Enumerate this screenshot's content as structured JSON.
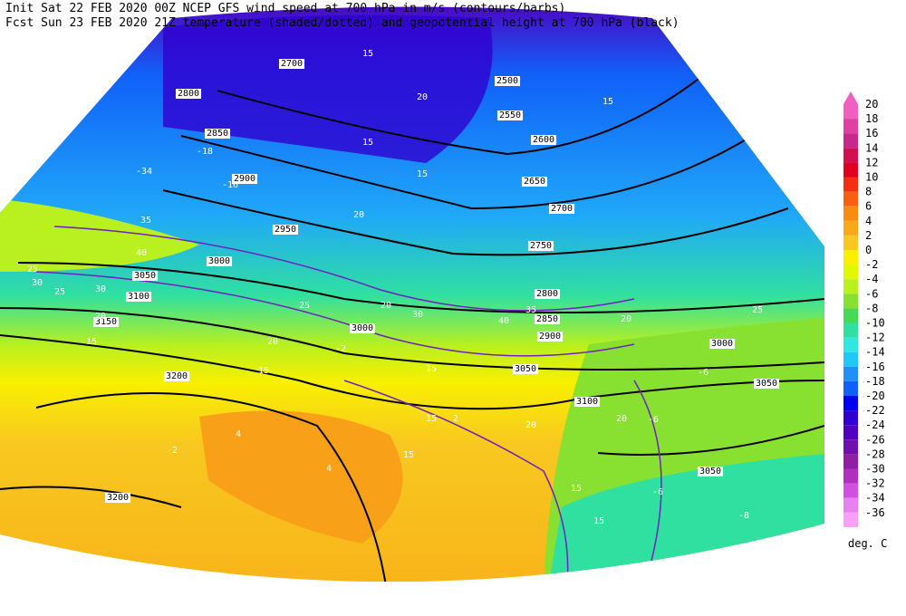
{
  "header": {
    "line1": "Init  Sat 22 FEB 2020 00Z   NCEP GFS wind speed at 700 hPa in m/s (contours/barbs)",
    "line2": "Fcst Sun 23 FEB 2020 21Z  temperature (shaded/dotted) and geopotential height at 700 hPa (black)"
  },
  "colorbar": {
    "labels": [
      20,
      18,
      16,
      14,
      12,
      10,
      8,
      6,
      4,
      2,
      0,
      -2,
      -4,
      -6,
      -8,
      -10,
      -12,
      -14,
      -16,
      -18,
      -20,
      -22,
      -24,
      -26,
      -28,
      -30,
      -32,
      -34,
      -36
    ],
    "colors": [
      "#f060c0",
      "#e040a0",
      "#c8288c",
      "#d01050",
      "#e00020",
      "#f03010",
      "#f86010",
      "#f88c10",
      "#f8a818",
      "#f8c820",
      "#f8f000",
      "#e0f800",
      "#b8f020",
      "#88e030",
      "#48d858",
      "#30e0a0",
      "#30e8e0",
      "#20c8f8",
      "#2090f8",
      "#1060f8",
      "#0000f0",
      "#3000d0",
      "#5000c0",
      "#7010b0",
      "#9020a0",
      "#b030c0",
      "#d050e0",
      "#e880f0",
      "#f8a0f8"
    ],
    "unit": "deg. C"
  },
  "map": {
    "height_labels": [
      "2700",
      "2800",
      "2850",
      "2900",
      "2950",
      "3000",
      "3050",
      "3100",
      "3150",
      "3200",
      "3200",
      "2500",
      "2550",
      "2600",
      "2650",
      "2700",
      "2750",
      "2800",
      "2850",
      "2900",
      "3000",
      "3050",
      "3100",
      "3000",
      "3050",
      "3050"
    ],
    "speed_labels": [
      "15",
      "20",
      "15",
      "15",
      "20",
      "25",
      "30",
      "35",
      "40",
      "30",
      "25",
      "20",
      "15",
      "20",
      "15",
      "20",
      "25",
      "30",
      "35",
      "40",
      "15",
      "15",
      "20",
      "15",
      "20",
      "25",
      "20",
      "15",
      "15",
      "15"
    ],
    "temp_labels": [
      "-34",
      "-18",
      "-16",
      "-2",
      "2",
      "4",
      "4",
      "2",
      "-6",
      "-6",
      "-8",
      "-6"
    ]
  }
}
